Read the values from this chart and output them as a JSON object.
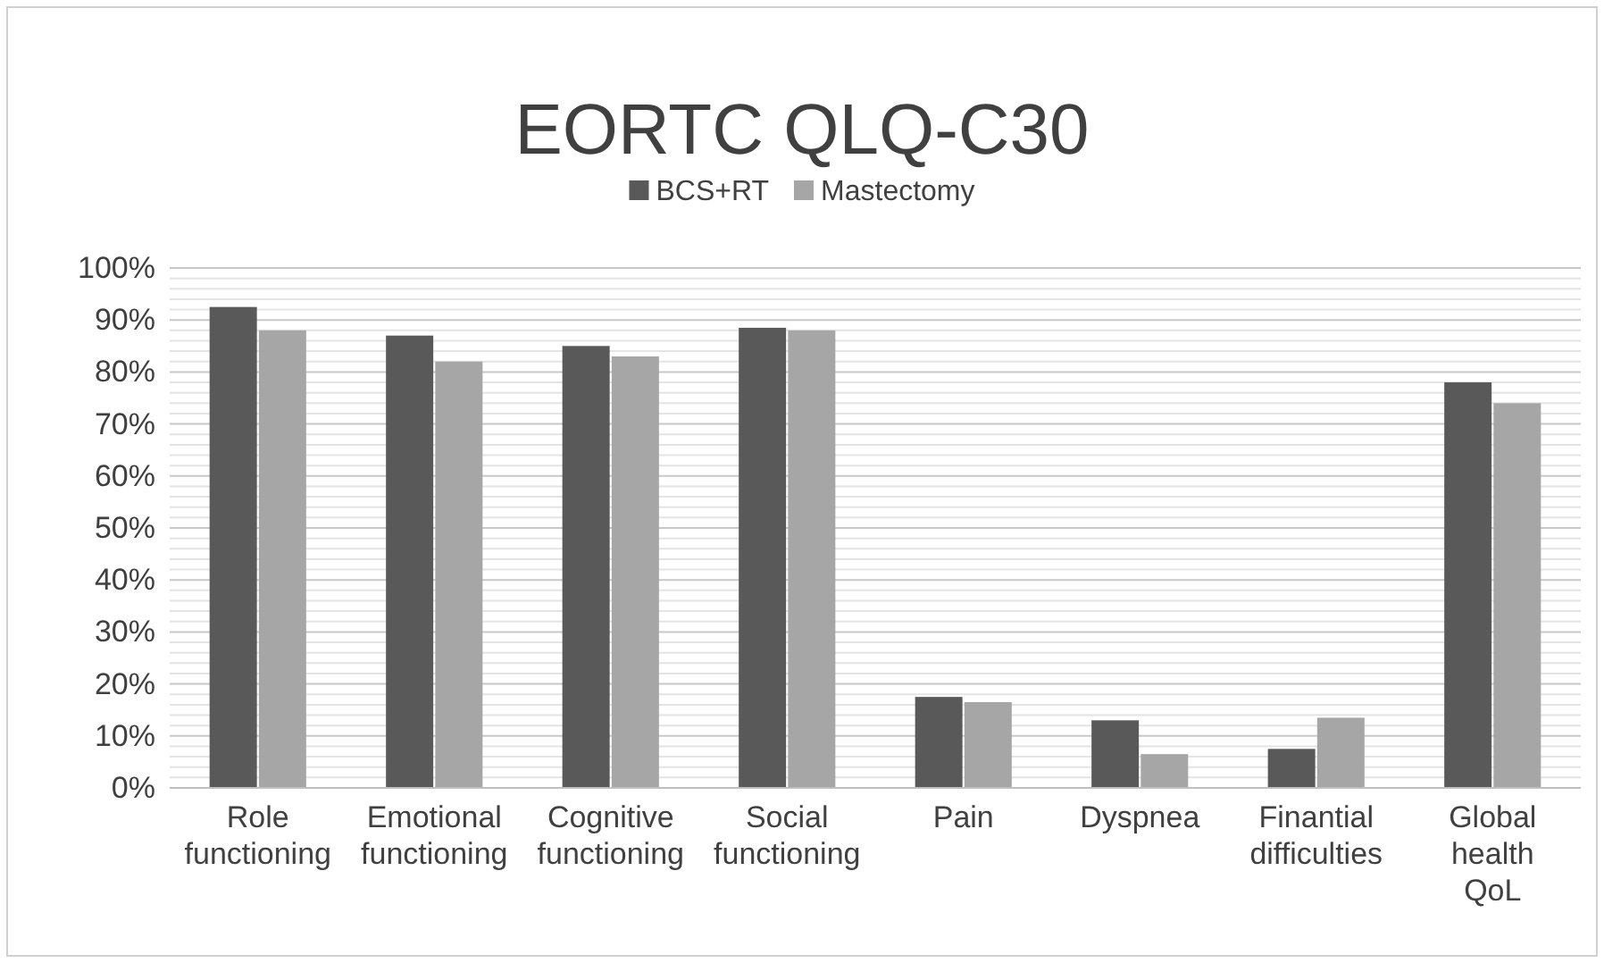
{
  "chart_data": {
    "type": "bar",
    "title": "EORTC QLQ-C30",
    "categories": [
      "Role functioning",
      "Emotional functioning",
      "Cognitive functioning",
      "Social functioning",
      "Pain",
      "Dyspnea",
      "Finantial difficulties",
      "Global health QoL"
    ],
    "series": [
      {
        "name": "BCS+RT",
        "color": "#595959",
        "values": [
          92.5,
          87,
          85,
          88.5,
          17.5,
          13,
          7.5,
          78
        ]
      },
      {
        "name": "Mastectomy",
        "color": "#a6a6a6",
        "values": [
          88,
          82,
          83,
          88,
          16.5,
          6.5,
          13.5,
          74
        ]
      }
    ],
    "ylim": [
      0,
      100
    ],
    "yticks": [
      {
        "value": 0,
        "label": "0%"
      },
      {
        "value": 2,
        "label": null
      },
      {
        "value": 4,
        "label": null
      },
      {
        "value": 6,
        "label": null
      },
      {
        "value": 8,
        "label": null
      },
      {
        "value": 10,
        "label": "10%"
      },
      {
        "value": 12,
        "label": null
      },
      {
        "value": 14,
        "label": null
      },
      {
        "value": 16,
        "label": null
      },
      {
        "value": 18,
        "label": null
      },
      {
        "value": 20,
        "label": "20%"
      },
      {
        "value": 22,
        "label": null
      },
      {
        "value": 24,
        "label": null
      },
      {
        "value": 26,
        "label": null
      },
      {
        "value": 28,
        "label": null
      },
      {
        "value": 30,
        "label": "30%"
      },
      {
        "value": 32,
        "label": null
      },
      {
        "value": 34,
        "label": null
      },
      {
        "value": 36,
        "label": null
      },
      {
        "value": 38,
        "label": null
      },
      {
        "value": 40,
        "label": "40%"
      },
      {
        "value": 42,
        "label": null
      },
      {
        "value": 44,
        "label": null
      },
      {
        "value": 46,
        "label": null
      },
      {
        "value": 48,
        "label": null
      },
      {
        "value": 50,
        "label": "50%"
      },
      {
        "value": 52,
        "label": null
      },
      {
        "value": 54,
        "label": null
      },
      {
        "value": 56,
        "label": null
      },
      {
        "value": 58,
        "label": null
      },
      {
        "value": 60,
        "label": "60%"
      },
      {
        "value": 62,
        "label": null
      },
      {
        "value": 64,
        "label": null
      },
      {
        "value": 66,
        "label": null
      },
      {
        "value": 68,
        "label": null
      },
      {
        "value": 70,
        "label": "70%"
      },
      {
        "value": 72,
        "label": null
      },
      {
        "value": 74,
        "label": null
      },
      {
        "value": 76,
        "label": null
      },
      {
        "value": 78,
        "label": null
      },
      {
        "value": 80,
        "label": "80%"
      },
      {
        "value": 82,
        "label": null
      },
      {
        "value": 84,
        "label": null
      },
      {
        "value": 86,
        "label": null
      },
      {
        "value": 88,
        "label": null
      },
      {
        "value": 90,
        "label": "90%"
      },
      {
        "value": 92,
        "label": null
      },
      {
        "value": 94,
        "label": null
      },
      {
        "value": 96,
        "label": null
      },
      {
        "value": 98,
        "label": null
      },
      {
        "value": 100,
        "label": "100%"
      }
    ],
    "grid": "y",
    "legend": "top"
  }
}
